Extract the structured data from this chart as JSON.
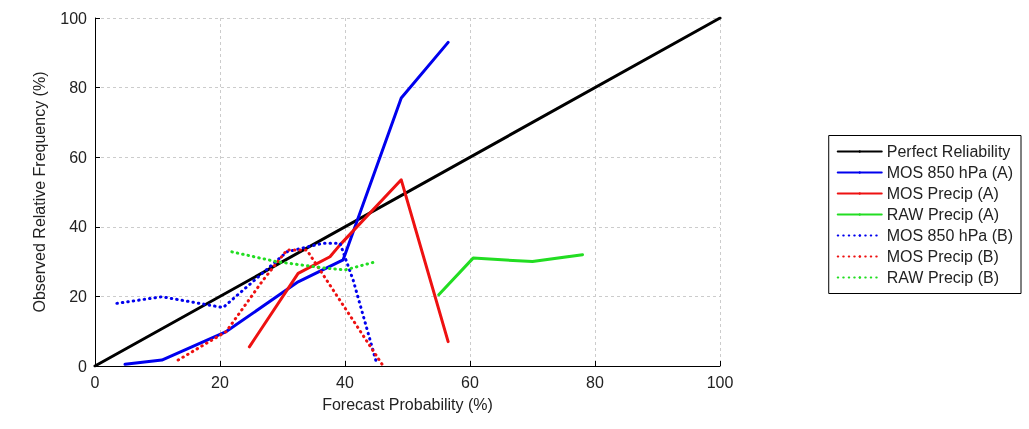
{
  "chart_data": {
    "type": "line",
    "xlabel": "Forecast Probability (%)",
    "ylabel": "Observed Relative Frequency (%)",
    "xlim": [
      0,
      100
    ],
    "xticks": [
      0,
      20,
      40,
      60,
      80,
      100
    ],
    "ylim": [
      0,
      100
    ],
    "yticks": [
      0,
      20,
      40,
      60,
      80,
      100
    ],
    "grid": true,
    "legend": "right",
    "marker": "none",
    "series": [
      {
        "name": "Perfect Reliability",
        "color": "#000000",
        "line_style": "solid",
        "x": [
          0,
          100
        ],
        "values": [
          0,
          100
        ]
      },
      {
        "name": "MOS 850 hPa (A)",
        "color": "#0000ee",
        "line_style": "solid",
        "x": [
          4.8,
          10.7,
          21,
          32.5,
          39.7,
          49,
          56.5
        ],
        "values": [
          0.5,
          1.7,
          9.9,
          24.2,
          30.5,
          77,
          93
        ]
      },
      {
        "name": "MOS Precip (A)",
        "color": "#ee1111",
        "line_style": "solid",
        "x": [
          24.7,
          32.5,
          37.6,
          39.2,
          49,
          56.5
        ],
        "values": [
          5.5,
          26.6,
          31.4,
          34.8,
          53.5,
          7
        ]
      },
      {
        "name": "RAW Precip (A)",
        "color": "#22dd22",
        "line_style": "solid",
        "x": [
          55,
          60.5,
          70,
          78
        ],
        "values": [
          20.5,
          31,
          30,
          32
        ]
      },
      {
        "name": "MOS 850 hPa (B)",
        "color": "#0000ee",
        "line_style": "dotted",
        "x": [
          3.5,
          10.7,
          20.5,
          25.3,
          30.7,
          36.5,
          39.2,
          41.3,
          45
        ],
        "values": [
          18,
          19.9,
          16.8,
          24.3,
          32.8,
          35.3,
          35.3,
          24.7,
          1.2
        ]
      },
      {
        "name": "MOS Precip (B)",
        "color": "#ee1111",
        "line_style": "dotted",
        "x": [
          13.3,
          21,
          26.9,
          30.7,
          33.9,
          46
        ],
        "values": [
          1.7,
          9.9,
          24.7,
          33.3,
          33.3,
          0.3
        ]
      },
      {
        "name": "RAW Precip (B)",
        "color": "#22dd22",
        "line_style": "dotted",
        "x": [
          21.9,
          29,
          36.5,
          40,
          45
        ],
        "values": [
          32.8,
          30,
          28.2,
          27.6,
          30
        ]
      }
    ]
  }
}
